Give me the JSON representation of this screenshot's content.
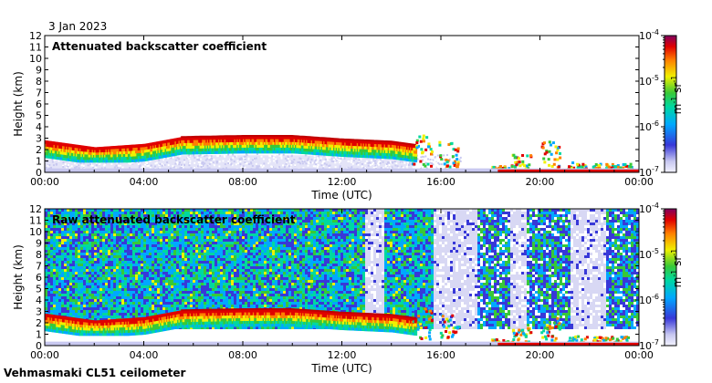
{
  "date": "3 Jan 2023",
  "footer": "Vehmasmaki CL51 ceilometer",
  "chart_data": [
    {
      "type": "heatmap",
      "title": "Attenuated backscatter coefficient",
      "xlabel": "Time (UTC)",
      "ylabel": "Height (km)",
      "x_ticks": [
        "00:00",
        "04:00",
        "08:00",
        "12:00",
        "16:00",
        "20:00",
        "00:00"
      ],
      "x_range_hours": [
        0,
        24
      ],
      "y_ticks": [
        "0",
        "1",
        "2",
        "3",
        "4",
        "5",
        "6",
        "7",
        "8",
        "9",
        "10",
        "11",
        "12"
      ],
      "ylim": [
        0,
        12
      ],
      "colorbar": {
        "label_base": "m",
        "label_exp1": "-1",
        "label_mid": " sr",
        "label_exp2": "-1",
        "ticks": [
          {
            "base": "10",
            "exp": "-4",
            "value": -4
          },
          {
            "base": "10",
            "exp": "-5",
            "value": -5
          },
          {
            "base": "10",
            "exp": "-6",
            "value": -6
          },
          {
            "base": "10",
            "exp": "-7",
            "value": -7
          }
        ],
        "range_log10": [
          -7,
          -4
        ],
        "colors": [
          "#f2f2ff",
          "#c8c8f0",
          "#3838d8",
          "#00a8ff",
          "#00d8a0",
          "#38c838",
          "#f0f000",
          "#ff8000",
          "#e00000",
          "#800060"
        ]
      },
      "cloud_layer_km": [
        [
          0,
          2.8
        ],
        [
          2,
          2.2
        ],
        [
          4,
          2.5
        ],
        [
          5.5,
          3.1
        ],
        [
          8,
          3.2
        ],
        [
          10,
          3.2
        ],
        [
          12,
          2.9
        ],
        [
          14,
          2.7
        ],
        [
          15,
          2.4
        ]
      ]
    },
    {
      "type": "heatmap",
      "title": "Raw attenuated backscatter coefficient",
      "xlabel": "Time (UTC)",
      "ylabel": "Height (km)",
      "x_ticks": [
        "00:00",
        "04:00",
        "08:00",
        "12:00",
        "16:00",
        "20:00",
        "00:00"
      ],
      "x_range_hours": [
        0,
        24
      ],
      "y_ticks": [
        "0",
        "1",
        "2",
        "3",
        "4",
        "5",
        "6",
        "7",
        "8",
        "9",
        "10",
        "11",
        "12"
      ],
      "ylim": [
        0,
        12
      ],
      "colorbar": {
        "label_base": "m",
        "label_exp1": "-1",
        "label_mid": " sr",
        "label_exp2": "-1",
        "ticks": [
          {
            "base": "10",
            "exp": "-4",
            "value": -4
          },
          {
            "base": "10",
            "exp": "-5",
            "value": -5
          },
          {
            "base": "10",
            "exp": "-6",
            "value": -6
          },
          {
            "base": "10",
            "exp": "-7",
            "value": -7
          }
        ],
        "range_log10": [
          -7,
          -4
        ],
        "colors": [
          "#f2f2ff",
          "#c8c8f0",
          "#3838d8",
          "#00a8ff",
          "#00d8a0",
          "#38c838",
          "#f0f000",
          "#ff8000",
          "#e00000",
          "#800060"
        ]
      },
      "cloud_layer_km": [
        [
          0,
          2.8
        ],
        [
          2,
          2.2
        ],
        [
          4,
          2.5
        ],
        [
          5.5,
          3.1
        ],
        [
          8,
          3.2
        ],
        [
          10,
          3.2
        ],
        [
          12,
          2.9
        ],
        [
          14,
          2.7
        ],
        [
          15,
          2.4
        ]
      ]
    }
  ]
}
